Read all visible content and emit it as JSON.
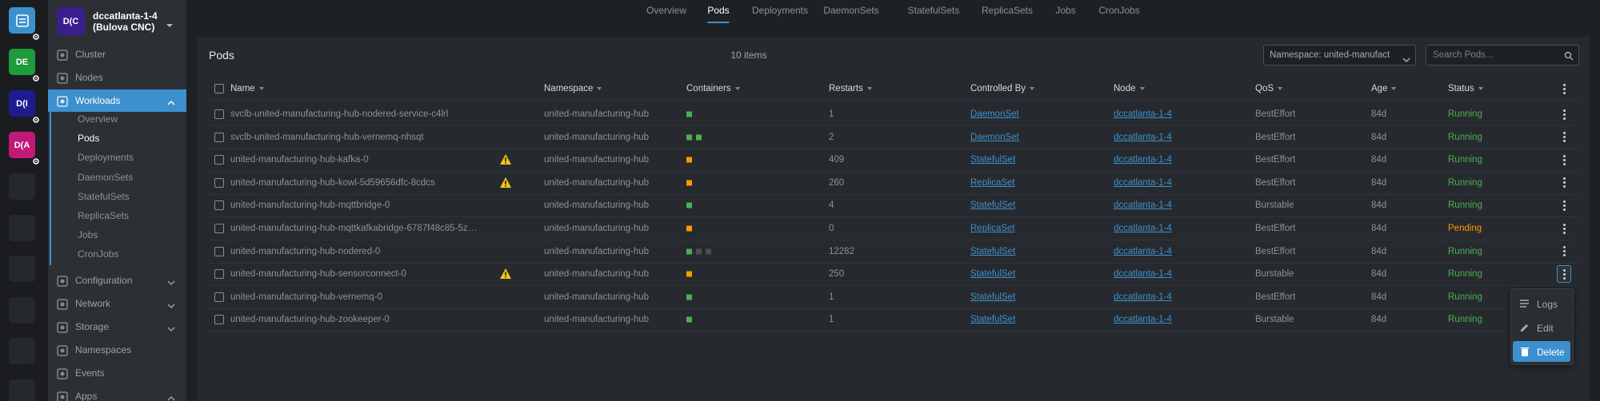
{
  "hotbar": {
    "clusters": [
      {
        "label": "DE",
        "color": "#1f9a3d"
      },
      {
        "label": "D(I",
        "color": "#1c1c8f"
      },
      {
        "label": "D(A",
        "color": "#c2187a"
      }
    ],
    "empty_slots": 6
  },
  "cluster": {
    "avatar": "D(C",
    "avatar_color": "#3a1f8c",
    "name": "dccatlanta-1-4",
    "subtitle": "(Bulova CNC)"
  },
  "sidebar": {
    "items": [
      {
        "label": "Cluster"
      },
      {
        "label": "Nodes"
      },
      {
        "label": "Workloads",
        "active": true,
        "chevron": "up",
        "children": [
          {
            "label": "Overview"
          },
          {
            "label": "Pods",
            "active": true
          },
          {
            "label": "Deployments"
          },
          {
            "label": "DaemonSets"
          },
          {
            "label": "StatefulSets"
          },
          {
            "label": "ReplicaSets"
          },
          {
            "label": "Jobs"
          },
          {
            "label": "CronJobs"
          }
        ]
      },
      {
        "label": "Configuration",
        "chevron": "down"
      },
      {
        "label": "Network",
        "chevron": "down"
      },
      {
        "label": "Storage",
        "chevron": "down"
      },
      {
        "label": "Namespaces"
      },
      {
        "label": "Events"
      },
      {
        "label": "Apps",
        "chevron": "up"
      }
    ]
  },
  "tabs": {
    "items": [
      "Overview",
      "Pods",
      "Deployments",
      "DaemonSets",
      "StatefulSets",
      "ReplicaSets",
      "Jobs",
      "CronJobs"
    ],
    "active": 1
  },
  "panel": {
    "title": "Pods",
    "count": "10 items",
    "namespace_select": "Namespace: united-manufact",
    "search_placeholder": "Search Pods..."
  },
  "table": {
    "columns": [
      "Name",
      "Namespace",
      "Containers",
      "Restarts",
      "Controlled By",
      "Node",
      "QoS",
      "Age",
      "Status"
    ],
    "rows": [
      {
        "name": "svclb-united-manufacturing-hub-nodered-service-c4lrl",
        "warning": false,
        "namespace": "united-manufacturing-hub",
        "containers": [
          "#4caf50"
        ],
        "restarts": 1,
        "controlled_by": "DaemonSet",
        "node": "dccatlanta-1-4",
        "qos": "BestEffort",
        "age": "84d",
        "status": "Running",
        "status_color": "#4caf50"
      },
      {
        "name": "svclb-united-manufacturing-hub-vernemq-nhsqt",
        "warning": false,
        "namespace": "united-manufacturing-hub",
        "containers": [
          "#4caf50",
          "#4caf50"
        ],
        "restarts": 2,
        "controlled_by": "DaemonSet",
        "node": "dccatlanta-1-4",
        "qos": "BestEffort",
        "age": "84d",
        "status": "Running",
        "status_color": "#4caf50"
      },
      {
        "name": "united-manufacturing-hub-kafka-0",
        "warning": true,
        "namespace": "united-manufacturing-hub",
        "containers": [
          "#ff9800"
        ],
        "restarts": 409,
        "controlled_by": "StatefulSet",
        "node": "dccatlanta-1-4",
        "qos": "BestEffort",
        "age": "84d",
        "status": "Running",
        "status_color": "#4caf50"
      },
      {
        "name": "united-manufacturing-hub-kowl-5d59656dfc-8cdcs",
        "warning": true,
        "namespace": "united-manufacturing-hub",
        "containers": [
          "#ff9800"
        ],
        "restarts": 260,
        "controlled_by": "ReplicaSet",
        "node": "dccatlanta-1-4",
        "qos": "BestEffort",
        "age": "84d",
        "status": "Running",
        "status_color": "#4caf50"
      },
      {
        "name": "united-manufacturing-hub-mqttbridge-0",
        "warning": false,
        "namespace": "united-manufacturing-hub",
        "containers": [
          "#4caf50"
        ],
        "restarts": 4,
        "controlled_by": "StatefulSet",
        "node": "dccatlanta-1-4",
        "qos": "Burstable",
        "age": "84d",
        "status": "Running",
        "status_color": "#4caf50"
      },
      {
        "name": "united-manufacturing-hub-mqttkafkabridge-6787f48c85-5z…",
        "warning": false,
        "namespace": "united-manufacturing-hub",
        "containers": [
          "#ff9800"
        ],
        "restarts": 0,
        "controlled_by": "ReplicaSet",
        "node": "dccatlanta-1-4",
        "qos": "BestEffort",
        "age": "84d",
        "status": "Pending",
        "status_color": "#ff9800"
      },
      {
        "name": "united-manufacturing-hub-nodered-0",
        "warning": false,
        "namespace": "united-manufacturing-hub",
        "containers": [
          "#4caf50",
          "#4a4f53",
          "#4a4f53"
        ],
        "restarts": 12282,
        "controlled_by": "StatefulSet",
        "node": "dccatlanta-1-4",
        "qos": "BestEffort",
        "age": "84d",
        "status": "Running",
        "status_color": "#4caf50"
      },
      {
        "name": "united-manufacturing-hub-sensorconnect-0",
        "warning": true,
        "namespace": "united-manufacturing-hub",
        "containers": [
          "#ff9800"
        ],
        "restarts": 250,
        "controlled_by": "StatefulSet",
        "node": "dccatlanta-1-4",
        "qos": "Burstable",
        "age": "84d",
        "status": "Running",
        "status_color": "#4caf50"
      },
      {
        "name": "united-manufacturing-hub-vernemq-0",
        "warning": false,
        "namespace": "united-manufacturing-hub",
        "containers": [
          "#4caf50"
        ],
        "restarts": 1,
        "controlled_by": "StatefulSet",
        "node": "dccatlanta-1-4",
        "qos": "BestEffort",
        "age": "84d",
        "status": "Running",
        "status_color": "#4caf50"
      },
      {
        "name": "united-manufacturing-hub-zookeeper-0",
        "warning": false,
        "namespace": "united-manufacturing-hub",
        "containers": [
          "#4caf50"
        ],
        "restarts": 1,
        "controlled_by": "StatefulSet",
        "node": "dccatlanta-1-4",
        "qos": "Burstable",
        "age": "84d",
        "status": "Running",
        "status_color": "#4caf50"
      }
    ],
    "menu_open_row": 7
  },
  "context_menu": {
    "items": [
      "Logs",
      "Edit",
      "Delete"
    ],
    "highlighted": 2
  }
}
